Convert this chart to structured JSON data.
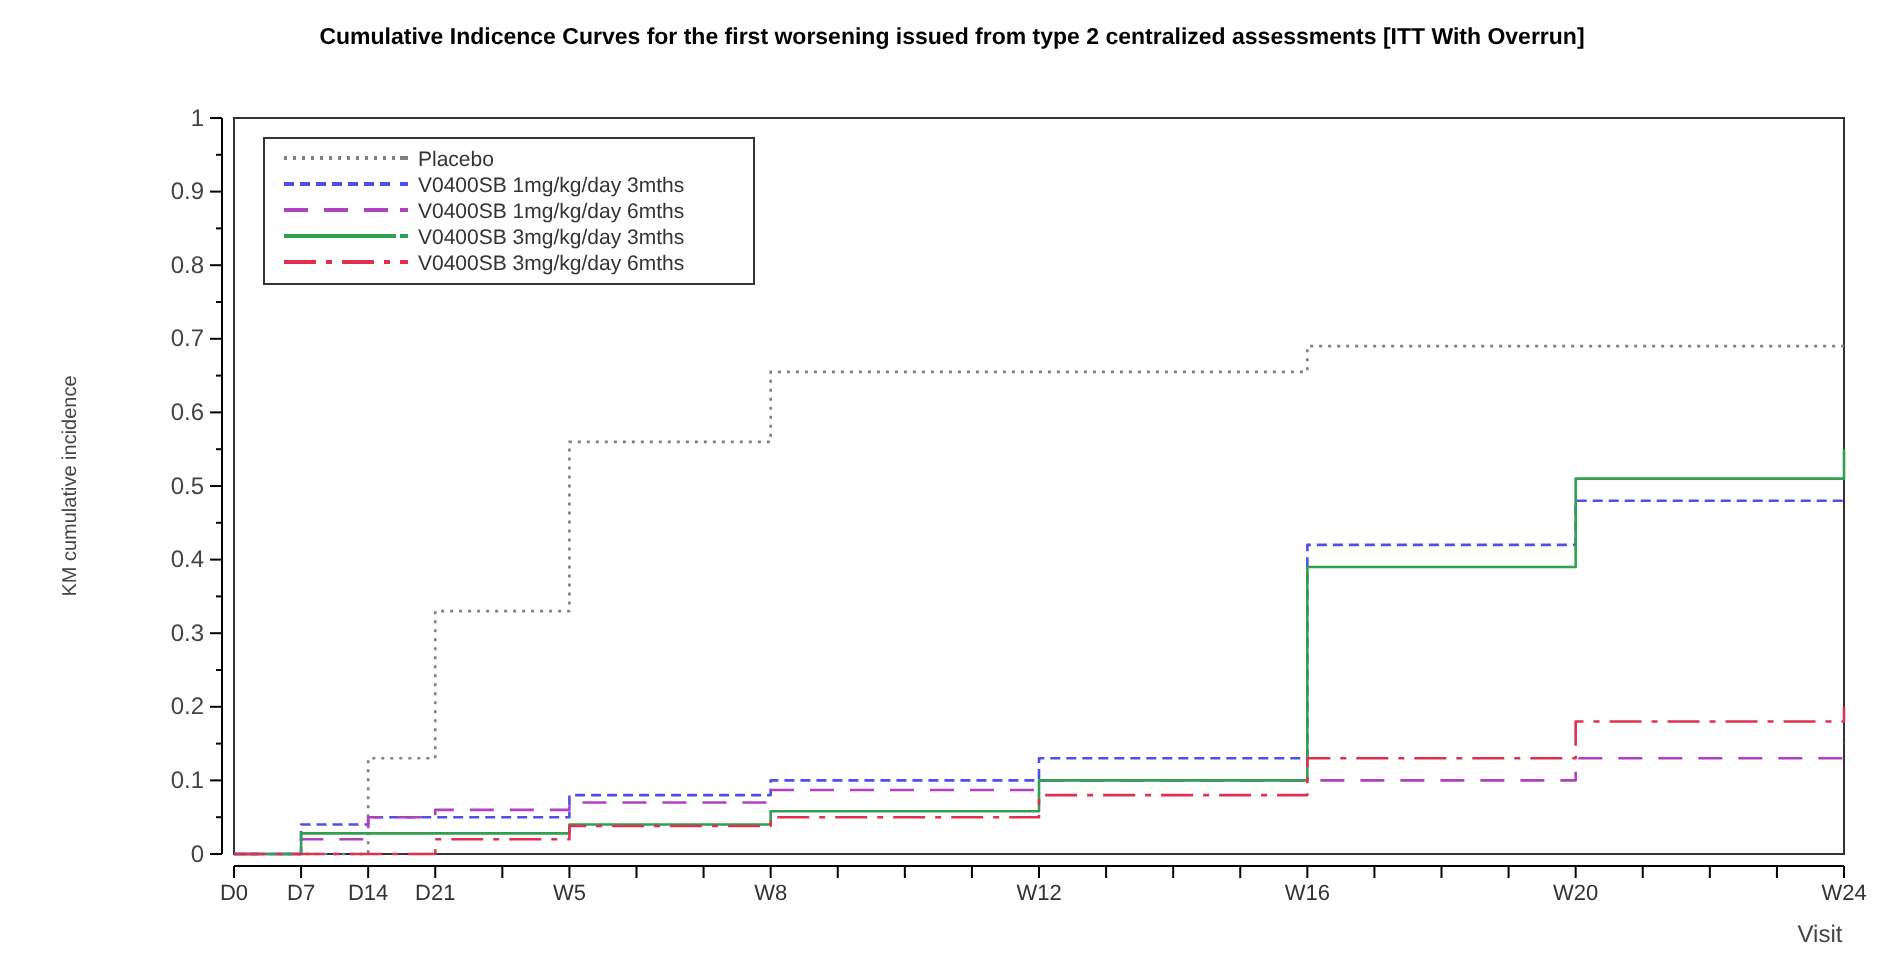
{
  "chart_data": {
    "type": "step",
    "title": "Cumulative Indicence Curves for the first worsening issued from type 2 centralized assessments [ITT With Overrun]",
    "xlabel": "Visit",
    "ylabel": "KM cumulative incidence",
    "categories": [
      "D0",
      "D7",
      "D14",
      "D21",
      null,
      "W5",
      null,
      null,
      "W8",
      null,
      null,
      null,
      "W12",
      null,
      null,
      null,
      "W16",
      null,
      null,
      null,
      "W20",
      null,
      null,
      null,
      "W24"
    ],
    "ylim": [
      0,
      1
    ],
    "yticks": [
      0,
      0.1,
      0.2,
      0.3,
      0.4,
      0.5,
      0.6,
      0.7,
      0.8,
      0.9,
      1
    ],
    "legend": "top left",
    "grid": false,
    "series": [
      {
        "name": "Placebo",
        "color": "#808080",
        "line_style": "dotted",
        "values": [
          0,
          0,
          0.13,
          0.33,
          0.33,
          0.56,
          0.56,
          0.56,
          0.655,
          0.655,
          0.655,
          0.655,
          0.655,
          0.655,
          0.655,
          0.655,
          0.69,
          0.69,
          0.69,
          0.69,
          0.69,
          0.69,
          0.69,
          0.69,
          0.69
        ]
      },
      {
        "name": "V0400SB 1mg/kg/day 3mths",
        "color": "#5050e8",
        "line_style": "dashed",
        "values": [
          0,
          0.04,
          0.05,
          0.05,
          0.05,
          0.08,
          0.08,
          0.08,
          0.1,
          0.1,
          0.1,
          0.1,
          0.13,
          0.13,
          0.13,
          0.13,
          0.42,
          0.42,
          0.42,
          0.42,
          0.48,
          0.48,
          0.48,
          0.48,
          0.48
        ]
      },
      {
        "name": "V0400SB 1mg/kg/day 6mths",
        "color": "#b040c0",
        "line_style": "dashed",
        "values": [
          0,
          0.02,
          0.05,
          0.06,
          0.06,
          0.07,
          0.07,
          0.07,
          0.087,
          0.087,
          0.087,
          0.087,
          0.1,
          0.1,
          0.1,
          0.1,
          0.1,
          0.1,
          0.1,
          0.1,
          0.13,
          0.13,
          0.13,
          0.13,
          0.15
        ]
      },
      {
        "name": "V0400SB 3mg/kg/day 3mths",
        "color": "#30a050",
        "line_style": "solid",
        "values": [
          0,
          0.028,
          0.028,
          0.028,
          0.028,
          0.04,
          0.04,
          0.04,
          0.058,
          0.058,
          0.058,
          0.058,
          0.1,
          0.1,
          0.1,
          0.1,
          0.39,
          0.39,
          0.39,
          0.39,
          0.51,
          0.51,
          0.51,
          0.51,
          0.55
        ]
      },
      {
        "name": "V0400SB 3mg/kg/day 6mths",
        "color": "#e03050",
        "line_style": "dashed",
        "values": [
          0,
          0,
          0,
          0.02,
          0.02,
          0.038,
          0.038,
          0.038,
          0.05,
          0.05,
          0.05,
          0.05,
          0.08,
          0.08,
          0.08,
          0.08,
          0.13,
          0.13,
          0.13,
          0.13,
          0.18,
          0.18,
          0.18,
          0.18,
          0.2
        ]
      }
    ]
  }
}
